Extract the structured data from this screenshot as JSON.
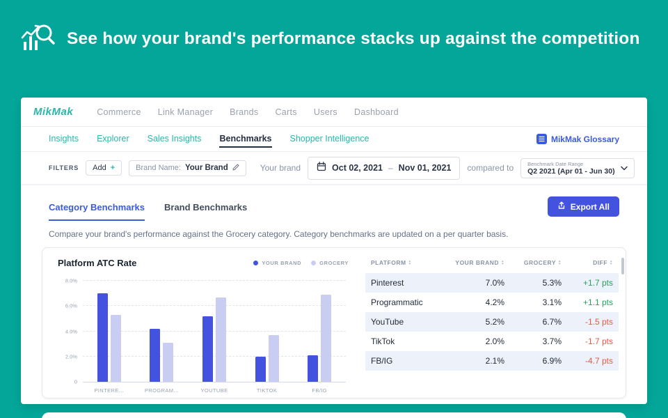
{
  "page": {
    "headline": "See how your brand's performance stacks up against the competition"
  },
  "app": {
    "logo": "MikMak",
    "top_nav": {
      "items": [
        {
          "label": "Commerce"
        },
        {
          "label": "Link Manager"
        },
        {
          "label": "Brands"
        },
        {
          "label": "Carts"
        },
        {
          "label": "Users"
        },
        {
          "label": "Dashboard"
        }
      ]
    },
    "sub_nav": {
      "items": [
        {
          "label": "Insights",
          "active": false
        },
        {
          "label": "Explorer",
          "active": false
        },
        {
          "label": "Sales Insights",
          "active": false
        },
        {
          "label": "Benchmarks",
          "active": true
        },
        {
          "label": "Shopper Intelligence",
          "active": false
        }
      ],
      "glossary_label": "MikMak Glossary"
    },
    "filters": {
      "label": "FILTERS",
      "add_label": "Add",
      "add_plus": "+",
      "brand_chip_label": "Brand Name:",
      "brand_chip_value": "Your Brand",
      "your_brand_label": "Your brand",
      "date_start": "Oct 02, 2021",
      "date_separator": "–",
      "date_end": "Nov 01, 2021",
      "compared_to_label": "compared to",
      "benchmark_caption": "Benchmark Date Range",
      "benchmark_value": "Q2 2021 (Apr 01 - Jun 30)"
    },
    "tabs": {
      "items": [
        {
          "label": "Category Benchmarks",
          "active": true
        },
        {
          "label": "Brand Benchmarks",
          "active": false
        }
      ],
      "export_label": "Export All"
    },
    "description": "Compare your brand's performance against the Grocery category. Category benchmarks are updated on a per quarter basis.",
    "table": {
      "columns": [
        "PLATFORM",
        "YOUR BRAND",
        "GROCERY",
        "DIFF"
      ],
      "rows": [
        {
          "platform": "Pinterest",
          "your_brand": "7.0%",
          "grocery": "5.3%",
          "diff": "+1.7 pts",
          "direction": "up"
        },
        {
          "platform": "Programmatic",
          "your_brand": "4.2%",
          "grocery": "3.1%",
          "diff": "+1.1 pts",
          "direction": "up"
        },
        {
          "platform": "YouTube",
          "your_brand": "5.2%",
          "grocery": "6.7%",
          "diff": "-1.5 pts",
          "direction": "down"
        },
        {
          "platform": "TikTok",
          "your_brand": "2.0%",
          "grocery": "3.7%",
          "diff": "-1.7 pts",
          "direction": "down"
        },
        {
          "platform": "FB/IG",
          "your_brand": "2.1%",
          "grocery": "6.9%",
          "diff": "-4.7 pts",
          "direction": "down"
        }
      ]
    }
  },
  "chart_data": {
    "type": "bar",
    "title": "Platform ATC Rate",
    "categories": [
      "Pinterest",
      "Programmatic",
      "YouTube",
      "TikTok",
      "FB/IG"
    ],
    "x_tick_labels": [
      "PINTERE...",
      "PROGRAM...",
      "YOUTUBE",
      "TIKTOK",
      "FB/IG"
    ],
    "series": [
      {
        "name": "YOUR BRAND",
        "values": [
          7.0,
          4.2,
          5.2,
          2.0,
          2.1
        ],
        "color": "#4353e0"
      },
      {
        "name": "GROCERY",
        "values": [
          5.3,
          3.1,
          6.7,
          3.7,
          6.9
        ],
        "color": "#c9cdf1"
      }
    ],
    "ylim": [
      0,
      8
    ],
    "y_ticks": [
      {
        "value": 8,
        "label": "8.0%"
      },
      {
        "value": 6,
        "label": "6.0%"
      },
      {
        "value": 4,
        "label": "4.0%"
      },
      {
        "value": 2,
        "label": "2.0%"
      },
      {
        "value": 0,
        "label": "0"
      }
    ],
    "xlabel": "",
    "ylabel": "",
    "grid": "dashed-horizontal",
    "legend_position": "top-right"
  },
  "colors": {
    "teal_background": "#03a699",
    "accent_blue": "#4353e0",
    "light_bar": "#c9cdf1",
    "positive_green": "#27a163",
    "negative_red": "#e8594a",
    "link_teal": "#2cb5aa",
    "link_blue": "#3b5bdb",
    "stripe_row": "#edf1f9"
  }
}
